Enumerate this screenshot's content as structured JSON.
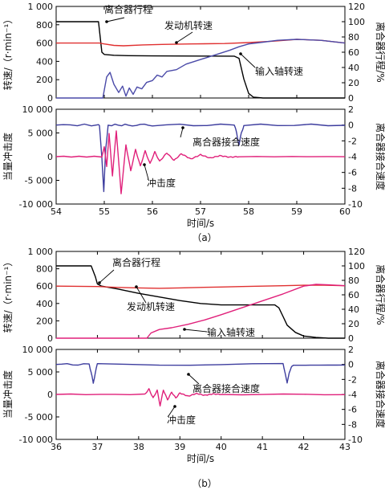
{
  "chart_data": [
    {
      "type": "line",
      "panel": "top",
      "subfigure": "(a)",
      "xlim": [
        54,
        60
      ],
      "ylabel_left": "转速/（r·min⁻¹）",
      "ylabel_right": "离合器行程/%",
      "ylim_left": [
        0,
        1000
      ],
      "ylim_right": [
        0,
        120
      ],
      "yticks_left": [
        "0",
        "200",
        "400",
        "600",
        "800",
        "1 000"
      ],
      "yticks_right": [
        "0",
        "20",
        "40",
        "60",
        "80",
        "100",
        "120"
      ],
      "series": [
        {
          "name": "离合器行程",
          "axis": "right",
          "color": "#000000",
          "points": [
            [
              54,
              100
            ],
            [
              54.88,
              100
            ],
            [
              54.95,
              60
            ],
            [
              55.0,
              57
            ],
            [
              55.2,
              56
            ],
            [
              55.5,
              55.5
            ],
            [
              56,
              55.2
            ],
            [
              57,
              55
            ],
            [
              57.7,
              54.8
            ],
            [
              57.8,
              52
            ],
            [
              57.9,
              25
            ],
            [
              58.0,
              6
            ],
            [
              58.1,
              1
            ],
            [
              58.3,
              0
            ],
            [
              60,
              0
            ]
          ]
        },
        {
          "name": "发动机转速",
          "axis": "left",
          "color": "#e03030",
          "points": [
            [
              54,
              600
            ],
            [
              54.9,
              600
            ],
            [
              55.0,
              590
            ],
            [
              55.2,
              575
            ],
            [
              55.4,
              570
            ],
            [
              55.8,
              580
            ],
            [
              56.2,
              585
            ],
            [
              56.8,
              590
            ],
            [
              57.5,
              595
            ],
            [
              58,
              605
            ],
            [
              58.5,
              620
            ],
            [
              59,
              640
            ],
            [
              59.5,
              630
            ],
            [
              60,
              600
            ]
          ]
        },
        {
          "name": "输入轴转速",
          "axis": "left",
          "color": "#4a4aa8",
          "points": [
            [
              54,
              0
            ],
            [
              54.97,
              0
            ],
            [
              55.05,
              230
            ],
            [
              55.12,
              280
            ],
            [
              55.2,
              150
            ],
            [
              55.3,
              60
            ],
            [
              55.38,
              130
            ],
            [
              55.45,
              20
            ],
            [
              55.52,
              110
            ],
            [
              55.6,
              40
            ],
            [
              55.68,
              120
            ],
            [
              55.78,
              100
            ],
            [
              55.88,
              170
            ],
            [
              56,
              190
            ],
            [
              56.1,
              250
            ],
            [
              56.2,
              230
            ],
            [
              56.3,
              290
            ],
            [
              56.5,
              310
            ],
            [
              56.7,
              370
            ],
            [
              57,
              420
            ],
            [
              57.3,
              470
            ],
            [
              57.6,
              520
            ],
            [
              57.8,
              560
            ],
            [
              58,
              590
            ],
            [
              58.3,
              610
            ],
            [
              58.6,
              630
            ],
            [
              59,
              640
            ],
            [
              59.5,
              630
            ],
            [
              60,
              600
            ]
          ]
        }
      ],
      "annotations": [
        "离合器行程",
        "发动机转速",
        "输入轴转速"
      ]
    },
    {
      "type": "line",
      "panel": "bottom",
      "subfigure": "(a)",
      "xlim": [
        54,
        60
      ],
      "xticks": [
        "54",
        "55",
        "56",
        "57",
        "58",
        "59",
        "60"
      ],
      "xlabel": "时间/s",
      "ylabel_left": "当量冲击度",
      "ylabel_right": "离合器接合速度",
      "ylim_left": [
        -10000,
        10000
      ],
      "ylim_right": [
        -10,
        2
      ],
      "yticks_left": [
        "-10 000",
        "-5 000",
        "0",
        "5 000",
        "10 000"
      ],
      "yticks_right": [
        "-10",
        "-8",
        "-6",
        "-4",
        "-2",
        "0",
        "2"
      ],
      "series": [
        {
          "name": "离合器接合速度",
          "axis": "right",
          "color": "#3d3d9e",
          "points": [
            [
              54,
              0
            ],
            [
              54.88,
              0
            ],
            [
              54.9,
              -0.2
            ],
            [
              54.95,
              -4
            ],
            [
              54.99,
              -8.5
            ],
            [
              55.03,
              -3
            ],
            [
              55.08,
              0
            ],
            [
              55.5,
              0
            ],
            [
              56,
              0
            ],
            [
              57.7,
              0
            ],
            [
              57.75,
              -1
            ],
            [
              57.8,
              -2.5
            ],
            [
              57.85,
              -1
            ],
            [
              57.9,
              0
            ],
            [
              60,
              0
            ]
          ]
        },
        {
          "name": "冲击度",
          "axis": "left",
          "color": "#e0207a",
          "points": [
            [
              54,
              0
            ],
            [
              54.95,
              0
            ],
            [
              55.0,
              2000
            ],
            [
              55.05,
              -2000
            ],
            [
              55.1,
              4800
            ],
            [
              55.17,
              -4000
            ],
            [
              55.25,
              5500
            ],
            [
              55.35,
              -7800
            ],
            [
              55.45,
              2500
            ],
            [
              55.55,
              -3000
            ],
            [
              55.65,
              1500
            ],
            [
              55.75,
              -2000
            ],
            [
              55.85,
              1200
            ],
            [
              55.95,
              -1500
            ],
            [
              56.05,
              1000
            ],
            [
              56.15,
              -1000
            ],
            [
              56.3,
              800
            ],
            [
              56.45,
              -800
            ],
            [
              56.6,
              600
            ],
            [
              56.8,
              -500
            ],
            [
              57,
              400
            ],
            [
              57.2,
              -300
            ],
            [
              57.4,
              200
            ],
            [
              57.6,
              -100
            ],
            [
              57.8,
              0
            ],
            [
              60,
              0
            ]
          ]
        }
      ],
      "annotations": [
        "离合器接合速度",
        "冲击度"
      ]
    },
    {
      "type": "line",
      "panel": "top",
      "subfigure": "(b)",
      "xlim": [
        36,
        43
      ],
      "ylabel_left": "转速/（r·min⁻¹）",
      "ylabel_right": "离合器行程/%",
      "ylim_left": [
        0,
        1000
      ],
      "ylim_right": [
        0,
        120
      ],
      "yticks_left": [
        "0",
        "200",
        "400",
        "600",
        "800",
        "1 000"
      ],
      "yticks_right": [
        "0",
        "20",
        "40",
        "60",
        "80",
        "100",
        "120"
      ],
      "series": [
        {
          "name": "离合器行程",
          "axis": "right",
          "color": "#000000",
          "points": [
            [
              36,
              100
            ],
            [
              36.85,
              100
            ],
            [
              36.95,
              85
            ],
            [
              37.0,
              75
            ],
            [
              37.1,
              72
            ],
            [
              37.5,
              68
            ],
            [
              38,
              62
            ],
            [
              38.5,
              57
            ],
            [
              39,
              52
            ],
            [
              39.5,
              48
            ],
            [
              40,
              46
            ],
            [
              40.5,
              46
            ],
            [
              41.3,
              46
            ],
            [
              41.4,
              42
            ],
            [
              41.5,
              30
            ],
            [
              41.6,
              18
            ],
            [
              41.8,
              8
            ],
            [
              42,
              3
            ],
            [
              42.3,
              1
            ],
            [
              42.6,
              0
            ],
            [
              43,
              0
            ]
          ]
        },
        {
          "name": "发动机转速",
          "axis": "left",
          "color": "#e03030",
          "points": [
            [
              36,
              600
            ],
            [
              37,
              595
            ],
            [
              37.5,
              585
            ],
            [
              38,
              580
            ],
            [
              38.5,
              575
            ],
            [
              39,
              580
            ],
            [
              39.5,
              585
            ],
            [
              40,
              590
            ],
            [
              40.5,
              595
            ],
            [
              41,
              600
            ],
            [
              41.5,
              605
            ],
            [
              42,
              610
            ],
            [
              42.5,
              610
            ],
            [
              43,
              605
            ]
          ]
        },
        {
          "name": "输入轴转速",
          "axis": "left",
          "color": "#e0207a",
          "points": [
            [
              36,
              0
            ],
            [
              38.2,
              0
            ],
            [
              38.3,
              60
            ],
            [
              38.5,
              100
            ],
            [
              38.8,
              120
            ],
            [
              39.2,
              160
            ],
            [
              39.6,
              210
            ],
            [
              40,
              270
            ],
            [
              40.5,
              350
            ],
            [
              41,
              430
            ],
            [
              41.5,
              510
            ],
            [
              42,
              600
            ],
            [
              42.3,
              620
            ],
            [
              42.6,
              615
            ],
            [
              43,
              605
            ]
          ]
        }
      ],
      "annotations": [
        "离合器行程",
        "发动机转速",
        "输入轴转速"
      ]
    },
    {
      "type": "line",
      "panel": "bottom",
      "subfigure": "(b)",
      "xlim": [
        36,
        43
      ],
      "xticks": [
        "36",
        "37",
        "38",
        "39",
        "40",
        "41",
        "42",
        "43"
      ],
      "xlabel": "时间/s",
      "ylabel_left": "当量冲击度",
      "ylabel_right": "离合器接合速度",
      "ylim_left": [
        -10000,
        10000
      ],
      "ylim_right": [
        -10,
        2
      ],
      "yticks_left": [
        "-10 000",
        "-5 000",
        "0",
        "5 000",
        "10 000"
      ],
      "yticks_right": [
        "-10",
        "-8",
        "-6",
        "-4",
        "-2",
        "0",
        "2"
      ],
      "series": [
        {
          "name": "离合器接合速度",
          "axis": "right",
          "color": "#3d3d9e",
          "points": [
            [
              36,
              0
            ],
            [
              36.8,
              0
            ],
            [
              36.85,
              -1
            ],
            [
              36.9,
              -2.6
            ],
            [
              36.95,
              -1
            ],
            [
              37.0,
              0
            ],
            [
              41.5,
              0
            ],
            [
              41.55,
              -1
            ],
            [
              41.6,
              -2.6
            ],
            [
              41.65,
              -1
            ],
            [
              41.75,
              0
            ],
            [
              43,
              0
            ]
          ]
        },
        {
          "name": "冲击度",
          "axis": "left",
          "color": "#e0207a",
          "points": [
            [
              36,
              0
            ],
            [
              38.15,
              0
            ],
            [
              38.25,
              1200
            ],
            [
              38.35,
              -800
            ],
            [
              38.45,
              900
            ],
            [
              38.52,
              -2500
            ],
            [
              38.6,
              1000
            ],
            [
              38.7,
              -1200
            ],
            [
              38.8,
              500
            ],
            [
              38.9,
              -800
            ],
            [
              39,
              300
            ],
            [
              39.2,
              -400
            ],
            [
              39.4,
              200
            ],
            [
              39.6,
              -200
            ],
            [
              39.8,
              100
            ],
            [
              40,
              0
            ],
            [
              43,
              0
            ]
          ]
        }
      ],
      "annotations": [
        "离合器接合速度",
        "冲击度"
      ]
    }
  ],
  "captions": [
    "（a）",
    "（b）"
  ],
  "dash_color": "#000000"
}
